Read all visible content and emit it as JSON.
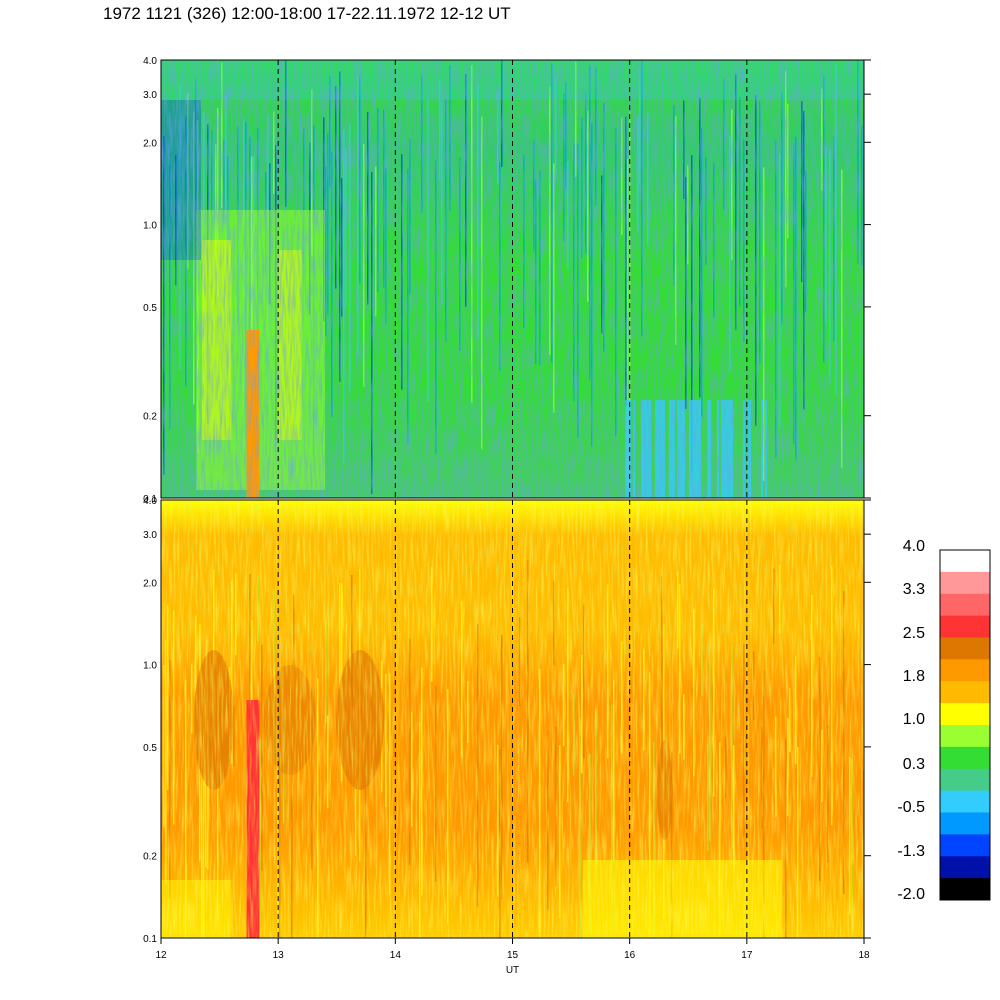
{
  "title": "1972 1121 (326) 12:00-18:00 17-22.11.1972  12-12 UT",
  "chart_data": {
    "type": "heatmap",
    "xlabel": "UT",
    "x_ticks": [
      "12",
      "13",
      "14",
      "15",
      "16",
      "17",
      "18"
    ],
    "x_range": [
      12,
      18
    ],
    "y_scale": "log",
    "y_range": [
      0.1,
      4.0
    ],
    "panels": [
      {
        "name": "upper",
        "y_ticks": [
          "4.0",
          "3.0",
          "2.0",
          "1.0",
          "0.5",
          "0.2",
          "0.1"
        ],
        "y_values": [
          4.0,
          3.0,
          2.0,
          1.0,
          0.5,
          0.2,
          0.1
        ],
        "dominant_levels": "green to blue (about -1.3 to 1.0), yellow near 12.3-13.3 UT, orange streak near 12.75 UT"
      },
      {
        "name": "lower",
        "y_ticks": [
          "4.0",
          "3.0",
          "2.0",
          "1.0",
          "0.5",
          "0.2",
          "0.1"
        ],
        "y_values": [
          4.0,
          3.0,
          2.0,
          1.0,
          0.5,
          0.2,
          0.1
        ],
        "dominant_levels": "orange to yellow (about 1.0 to 2.5), red streak near 12.75 UT"
      }
    ],
    "dashed_verticals_at": [
      13,
      14,
      15,
      16,
      17
    ],
    "colorbar": {
      "labels": [
        "4.0",
        "3.3",
        "2.5",
        "1.8",
        "1.0",
        "0.3",
        "-0.5",
        "-1.3",
        "-2.0"
      ],
      "colors": [
        "#ffffff",
        "#ff9999",
        "#ff6666",
        "#ff3333",
        "#dd7700",
        "#ff9900",
        "#ffbb00",
        "#ffff00",
        "#99ff33",
        "#33dd33",
        "#44cc88",
        "#33ccff",
        "#0099ff",
        "#0044ff",
        "#0011aa",
        "#000000"
      ]
    },
    "grid": false
  }
}
